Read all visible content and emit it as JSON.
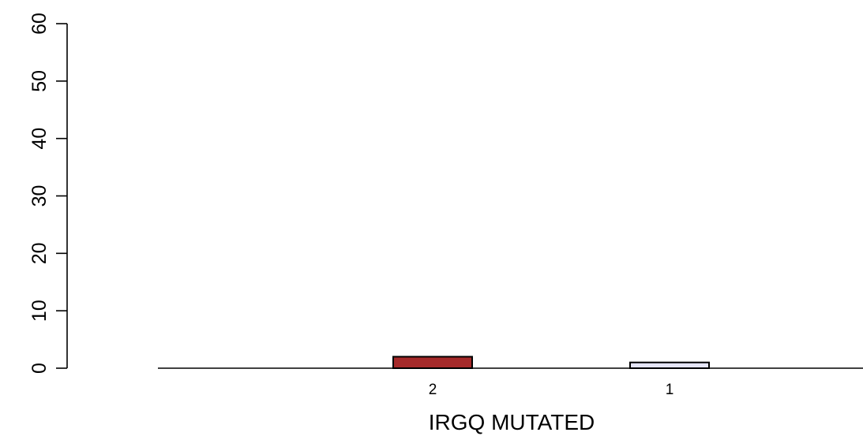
{
  "chart_data": {
    "type": "bar",
    "title": "",
    "xlabel": "IRGQ MUTATED",
    "ylabel": "",
    "ylim": [
      0,
      60
    ],
    "yticks": [
      0,
      10,
      20,
      30,
      40,
      50,
      60
    ],
    "categories": [
      "2",
      "1"
    ],
    "values": [
      2,
      1
    ],
    "colors": [
      "#a52a2a",
      "#e6e6fa"
    ],
    "grid": false,
    "legend": "none"
  }
}
